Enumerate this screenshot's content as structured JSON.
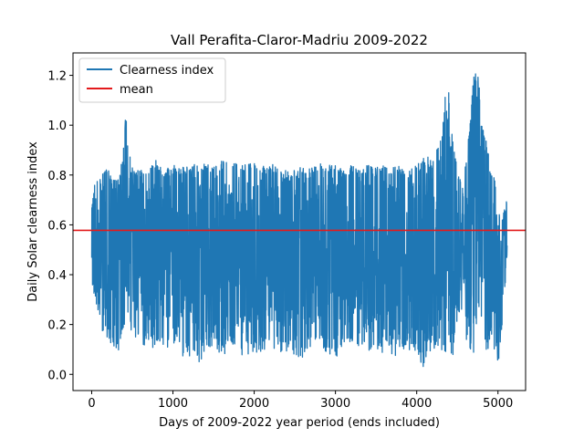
{
  "chart_data": {
    "type": "line",
    "title": "Vall Perafita-Claror-Madriu 2009-2022",
    "xlabel": "Days of 2009-2022 year period (ends included)",
    "ylabel": "Daily Solar clearness index",
    "xlim": [
      -230,
      5340
    ],
    "ylim": [
      -0.065,
      1.29
    ],
    "xticks": [
      0,
      1000,
      2000,
      3000,
      4000,
      5000
    ],
    "xtick_labels": [
      "0",
      "1000",
      "2000",
      "3000",
      "4000",
      "5000"
    ],
    "yticks": [
      0.0,
      0.2,
      0.4,
      0.6,
      0.8,
      1.0,
      1.2
    ],
    "ytick_labels": [
      "0.0",
      "0.2",
      "0.4",
      "0.6",
      "0.8",
      "1.0",
      "1.2"
    ],
    "grid": false,
    "legend_position": "upper-left",
    "series": [
      {
        "name": "Clearness index",
        "color": "#1f77b4",
        "n_days": 5113,
        "daily_envelope": {
          "x": [
            0,
            50,
            100,
            150,
            200,
            250,
            300,
            350,
            400,
            420,
            450,
            500,
            600,
            700,
            800,
            900,
            1000,
            1100,
            1200,
            1300,
            1400,
            1500,
            1600,
            1700,
            1800,
            1900,
            2000,
            2100,
            2200,
            2300,
            2400,
            2500,
            2600,
            2700,
            2800,
            2900,
            3000,
            3100,
            3200,
            3300,
            3400,
            3500,
            3600,
            3700,
            3800,
            3900,
            4000,
            4050,
            4100,
            4200,
            4300,
            4350,
            4400,
            4450,
            4500,
            4550,
            4600,
            4650,
            4700,
            4750,
            4780,
            4800,
            4850,
            4900,
            4950,
            5000,
            5050,
            5112
          ],
          "upper": [
            0.68,
            0.8,
            0.79,
            0.84,
            0.82,
            0.8,
            0.78,
            0.81,
            0.93,
            1.06,
            0.92,
            0.83,
            0.82,
            0.82,
            0.87,
            0.82,
            0.84,
            0.83,
            0.85,
            0.85,
            0.85,
            0.83,
            0.86,
            0.86,
            0.84,
            0.85,
            0.85,
            0.84,
            0.85,
            0.83,
            0.82,
            0.82,
            0.84,
            0.84,
            0.85,
            0.84,
            0.84,
            0.82,
            0.84,
            0.82,
            0.84,
            0.83,
            0.84,
            0.83,
            0.84,
            0.82,
            0.84,
            0.86,
            0.88,
            0.86,
            0.95,
            1.12,
            1.14,
            0.95,
            0.82,
            0.78,
            0.84,
            1.0,
            1.19,
            1.23,
            1.12,
            1.0,
            0.95,
            0.85,
            0.8,
            0.68,
            0.62,
            0.71
          ],
          "lower": [
            0.37,
            0.29,
            0.22,
            0.13,
            0.14,
            0.1,
            0.08,
            0.1,
            0.18,
            0.31,
            0.22,
            0.15,
            0.12,
            0.11,
            0.1,
            0.09,
            0.12,
            0.07,
            0.06,
            0.04,
            0.08,
            0.1,
            0.07,
            0.1,
            0.08,
            0.07,
            0.09,
            0.08,
            0.1,
            0.09,
            0.07,
            0.04,
            0.06,
            0.1,
            0.12,
            0.08,
            0.06,
            0.09,
            0.11,
            0.08,
            0.08,
            0.05,
            0.1,
            0.07,
            0.08,
            0.09,
            0.07,
            0.0,
            0.03,
            0.09,
            0.06,
            0.08,
            0.05,
            0.04,
            0.2,
            0.23,
            0.1,
            0.11,
            0.06,
            0.27,
            0.2,
            0.16,
            0.09,
            0.1,
            0.08,
            0.03,
            0.19,
            0.45
          ]
        }
      },
      {
        "name": "mean",
        "color": "#e31a1c",
        "value": 0.578
      }
    ]
  }
}
